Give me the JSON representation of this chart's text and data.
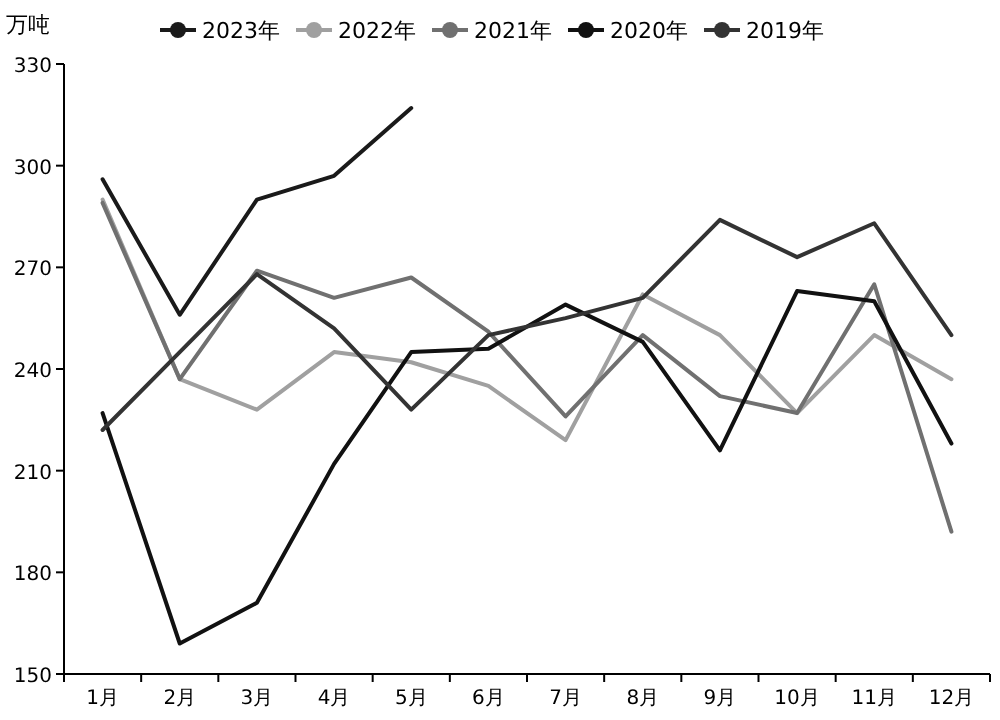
{
  "chart_data": {
    "type": "line",
    "ylabel": "万吨",
    "categories": [
      "1月",
      "2月",
      "3月",
      "4月",
      "5月",
      "6月",
      "7月",
      "8月",
      "9月",
      "10月",
      "11月",
      "12月"
    ],
    "series": [
      {
        "name": "2023年",
        "color": "#1a1a1a",
        "values": [
          296,
          256,
          290,
          297,
          317,
          null,
          null,
          null,
          null,
          null,
          null,
          null
        ]
      },
      {
        "name": "2022年",
        "color": "#a0a0a0",
        "values": [
          290,
          237,
          228,
          245,
          242,
          235,
          219,
          262,
          250,
          227,
          250,
          237
        ]
      },
      {
        "name": "2021年",
        "color": "#707070",
        "values": [
          289,
          237,
          269,
          261,
          267,
          251,
          226,
          250,
          232,
          227,
          265,
          192
        ]
      },
      {
        "name": "2020年",
        "color": "#111111",
        "values": [
          227,
          159,
          171,
          212,
          245,
          246,
          259,
          248,
          216,
          263,
          260,
          218
        ]
      },
      {
        "name": "2019年",
        "color": "#333333",
        "values": [
          222,
          245,
          268,
          252,
          228,
          250,
          255,
          261,
          284,
          273,
          283,
          250
        ]
      }
    ],
    "ylim": [
      150,
      330
    ],
    "yticks": [
      150,
      180,
      210,
      240,
      270,
      300,
      330
    ],
    "grid": false,
    "legend": "top"
  }
}
